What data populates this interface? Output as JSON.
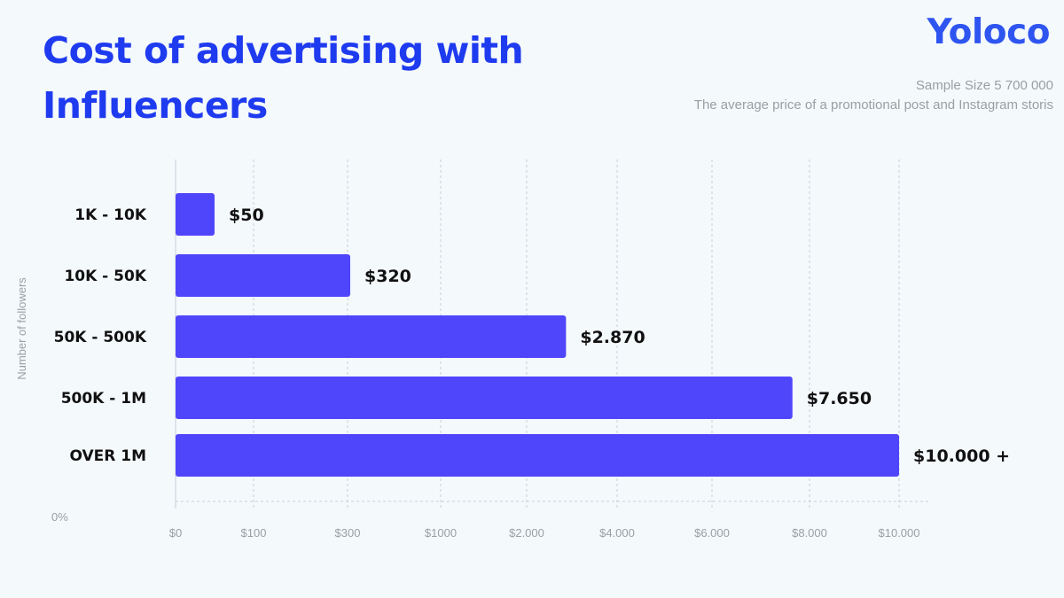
{
  "header": {
    "title_line1": "Cost of advertising with",
    "title_line2": "Influencers",
    "brand": "Yoloco",
    "subtitle_line1": "Sample Size 5 700 000",
    "subtitle_line2": "The average price of a promotional post and Instagram storis"
  },
  "colors": {
    "bar": "#4f46fb",
    "title": "#1f3bef",
    "brand": "#2f55f0",
    "grid": "#c9ced6",
    "muted_text": "#9b9ea3",
    "background": "#f4f9fc"
  },
  "chart_data": {
    "type": "bar",
    "orientation": "horizontal",
    "ylabel": "Number of followers",
    "xlabel": "",
    "origin_label": "0%",
    "categories": [
      "1K - 10K",
      "10K - 50K",
      "50K - 500K",
      "500K - 1M",
      "OVER 1M"
    ],
    "values": [
      50,
      320,
      2870,
      7650,
      10000
    ],
    "value_labels": [
      "$50",
      "$320",
      "$2.870",
      "$7.650",
      "$10.000 +"
    ],
    "x_ticks": [
      {
        "label": "$0",
        "value": 0
      },
      {
        "label": "$100",
        "value": 100
      },
      {
        "label": "$300",
        "value": 300
      },
      {
        "label": "$1000",
        "value": 1000
      },
      {
        "label": "$2.000",
        "value": 2000
      },
      {
        "label": "$4.000",
        "value": 4000
      },
      {
        "label": "$6.000",
        "value": 6000
      },
      {
        "label": "$8.000",
        "value": 8000
      },
      {
        "label": "$10.000",
        "value": 10000
      }
    ],
    "x_scale": "non-linear (piecewise between printed ticks)",
    "grid": "vertical dashed",
    "legend": "none"
  }
}
